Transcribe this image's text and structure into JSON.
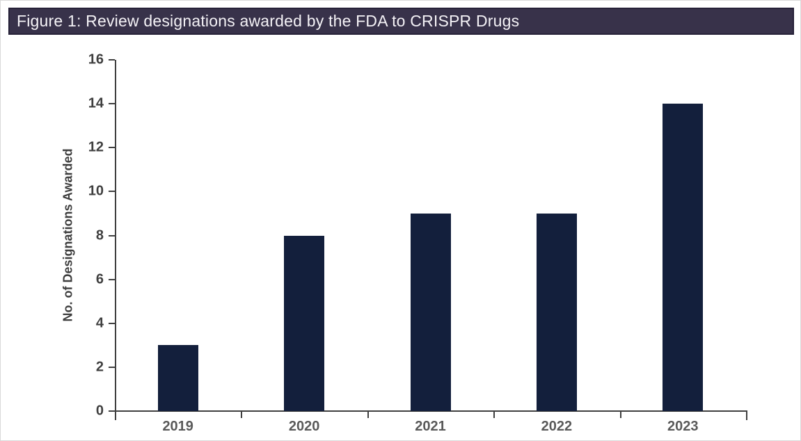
{
  "header": {
    "title": "Figure 1: Review designations awarded by the FDA to CRISPR Drugs",
    "background_color": "#38324a",
    "text_color": "#f4f2f6"
  },
  "chart_data": {
    "type": "bar",
    "title": "Figure 1: Review designations awarded by the FDA to CRISPR Drugs",
    "categories": [
      "2019",
      "2020",
      "2021",
      "2022",
      "2023"
    ],
    "values": [
      3,
      8,
      9,
      9,
      14
    ],
    "xlabel": "",
    "ylabel": "No. of Designations Awarded",
    "ylim": [
      0,
      16
    ],
    "ytick_step": 2,
    "yticks": [
      0,
      2,
      4,
      6,
      8,
      10,
      12,
      14,
      16
    ],
    "grid": false,
    "legend": "none",
    "bar_color": "#131f3c",
    "axis_color": "#3f3f3f",
    "ytick_label_color": "#3f3f3f",
    "xtick_label_color": "#595959"
  }
}
